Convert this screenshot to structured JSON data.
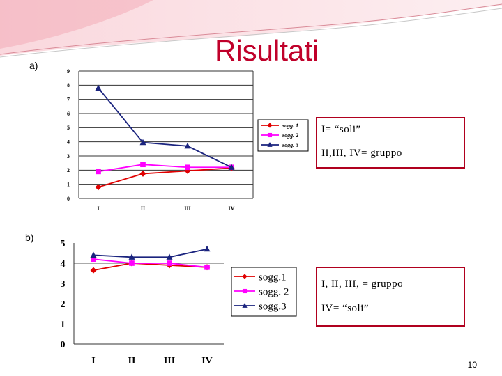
{
  "slide": {
    "title": "Risultati",
    "page_number": "10",
    "label_a": "a)",
    "label_b": "b)",
    "box_a": [
      "I= “soli”",
      "II,III, IV= gruppo"
    ],
    "box_b": [
      "I,  II, III, = gruppo",
      "IV= “soli”"
    ]
  },
  "chart_data": [
    {
      "type": "line",
      "categories": [
        "I",
        "II",
        "III",
        "IV"
      ],
      "ylim": [
        0,
        9
      ],
      "yticks": [
        "0",
        "1",
        "2",
        "3",
        "4",
        "5",
        "6",
        "7",
        "8",
        "9"
      ],
      "series": [
        {
          "name": "sogg. 1",
          "color": "#e00000",
          "marker": "diamond",
          "values": [
            0.8,
            1.75,
            1.95,
            2.15
          ]
        },
        {
          "name": "sogg. 2",
          "color": "#ff00ff",
          "marker": "square",
          "values": [
            1.9,
            2.4,
            2.2,
            2.2
          ]
        },
        {
          "name": "sogg. 3",
          "color": "#1a237e",
          "marker": "triangle",
          "values": [
            7.8,
            3.95,
            3.7,
            2.2
          ]
        }
      ],
      "legend": "right"
    },
    {
      "type": "line",
      "categories": [
        "I",
        "II",
        "III",
        "IV"
      ],
      "ylim": [
        0,
        5
      ],
      "yticks": [
        "0",
        "1",
        "2",
        "3",
        "4",
        "5"
      ],
      "gridlines": [
        4
      ],
      "series": [
        {
          "name": "sogg.1",
          "color": "#e00000",
          "marker": "diamond",
          "values": [
            3.65,
            4.0,
            3.9,
            3.8
          ]
        },
        {
          "name": "sogg. 2",
          "color": "#ff00ff",
          "marker": "square",
          "values": [
            4.2,
            4.0,
            4.0,
            3.8
          ]
        },
        {
          "name": "sogg.3",
          "color": "#1a237e",
          "marker": "triangle",
          "values": [
            4.4,
            4.3,
            4.3,
            4.7
          ]
        }
      ],
      "legend": "right"
    }
  ]
}
